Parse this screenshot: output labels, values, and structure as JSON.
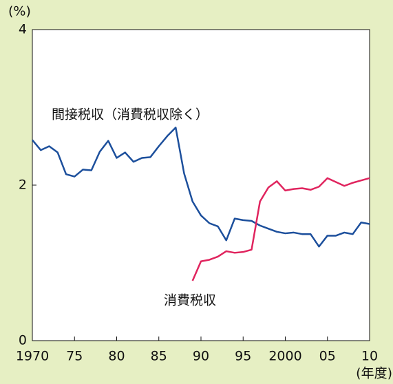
{
  "chart_data": {
    "type": "line",
    "y_unit_label": "(%)",
    "x_unit_label": "(年度)",
    "annotations": [
      "間接税収（消費税収除く）",
      "消費税収"
    ],
    "x": [
      1970,
      1971,
      1972,
      1973,
      1974,
      1975,
      1976,
      1977,
      1978,
      1979,
      1980,
      1981,
      1982,
      1983,
      1984,
      1985,
      1986,
      1987,
      1988,
      1989,
      1990,
      1991,
      1992,
      1993,
      1994,
      1995,
      1996,
      1997,
      1998,
      1999,
      2000,
      2001,
      2002,
      2003,
      2004,
      2005,
      2006,
      2007,
      2008,
      2009,
      2010
    ],
    "series": [
      {
        "name": "間接税収（消費税収除く）",
        "color": "#1c4f9c",
        "values": [
          2.58,
          2.45,
          2.5,
          2.42,
          2.14,
          2.11,
          2.2,
          2.19,
          2.43,
          2.57,
          2.35,
          2.42,
          2.3,
          2.35,
          2.36,
          2.5,
          2.63,
          2.74,
          2.15,
          1.79,
          1.61,
          1.51,
          1.47,
          1.29,
          1.57,
          1.55,
          1.54,
          1.48,
          1.44,
          1.4,
          1.38,
          1.39,
          1.37,
          1.37,
          1.21,
          1.35,
          1.35,
          1.39,
          1.37,
          1.52,
          1.5
        ]
      },
      {
        "name": "消費税収",
        "color": "#e0245e",
        "values": [
          null,
          null,
          null,
          null,
          null,
          null,
          null,
          null,
          null,
          null,
          null,
          null,
          null,
          null,
          null,
          null,
          null,
          null,
          null,
          0.77,
          1.02,
          1.04,
          1.08,
          1.15,
          1.13,
          1.14,
          1.17,
          1.79,
          1.97,
          2.05,
          1.93,
          1.95,
          1.96,
          1.94,
          1.98,
          2.09,
          2.04,
          1.99,
          2.03,
          2.06,
          2.09
        ]
      }
    ],
    "xlim": [
      1970,
      2010
    ],
    "xticks": [
      1970,
      {
        "value": 1975,
        "label": "75"
      },
      {
        "value": 1980,
        "label": "80"
      },
      {
        "value": 1985,
        "label": "85"
      },
      {
        "value": 1990,
        "label": "90"
      },
      {
        "value": 1995,
        "label": "95"
      },
      2000,
      {
        "value": 2005,
        "label": "05"
      },
      {
        "value": 2010,
        "label": "10"
      }
    ],
    "ylim": [
      0,
      4
    ],
    "yticks": [
      0,
      2,
      4
    ],
    "grid": false
  }
}
